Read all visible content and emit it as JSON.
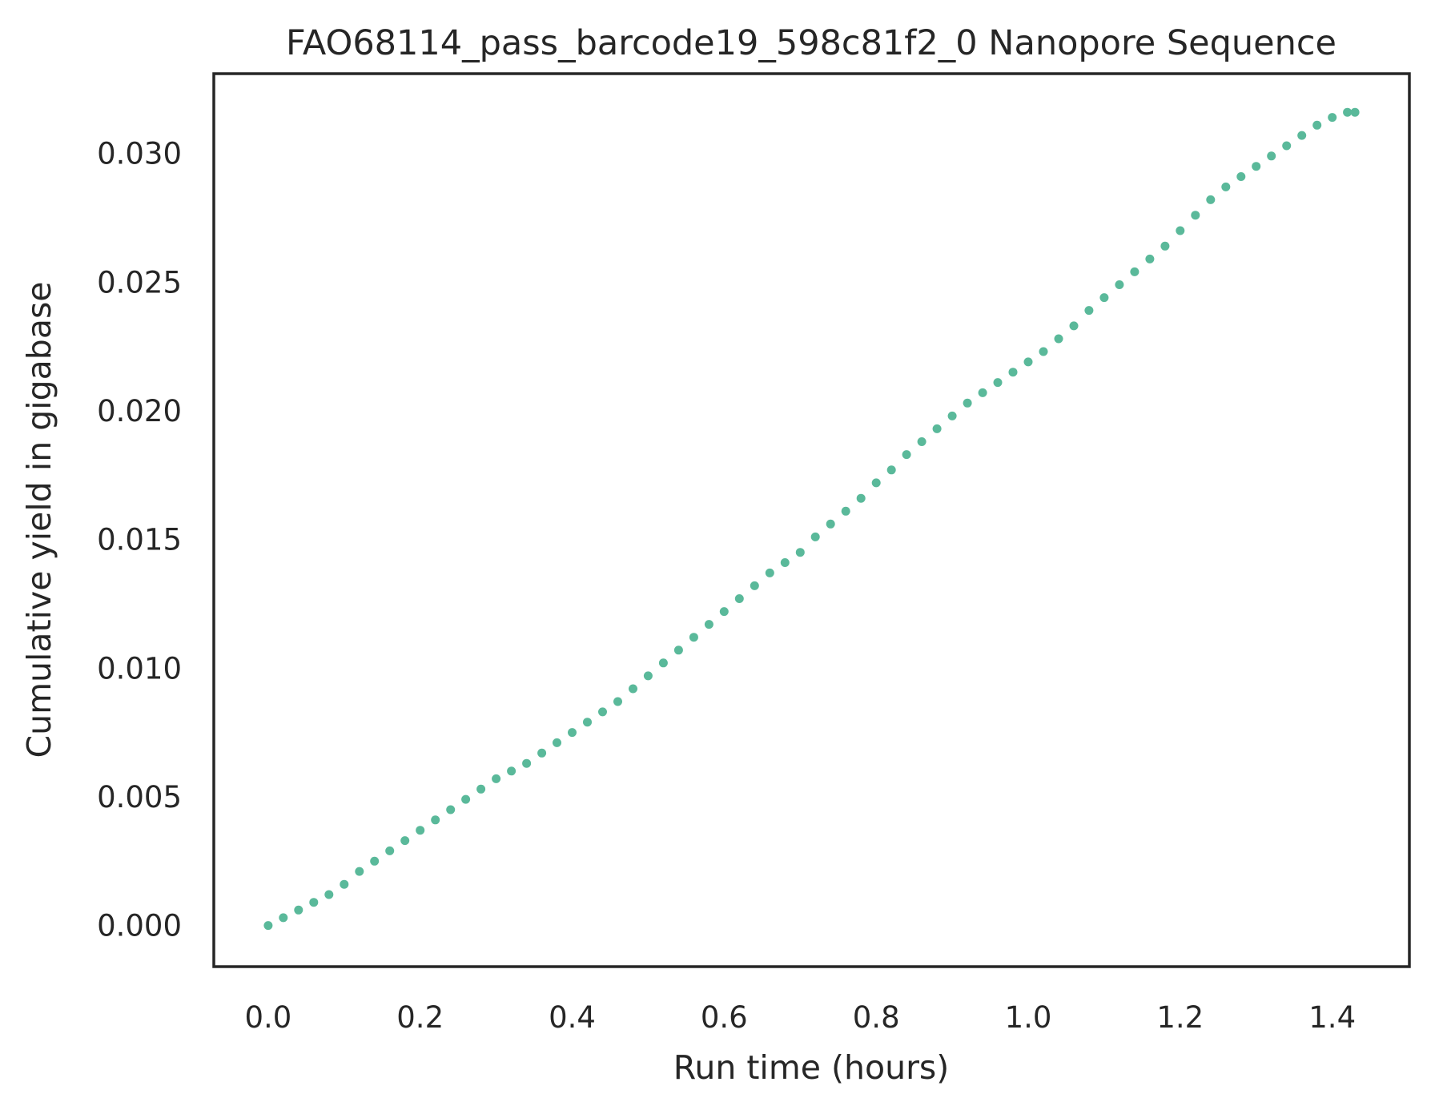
{
  "chart_data": {
    "type": "scatter",
    "title": "FAO68114_pass_barcode19_598c81f2_0 Nanopore Sequence",
    "xlabel": "Run time (hours)",
    "ylabel": "Cumulative yield in gigabase",
    "xlim": [
      -0.0715,
      1.5015
    ],
    "ylim": [
      -0.0016,
      0.0331
    ],
    "xticks": [
      0.0,
      0.2,
      0.4,
      0.6,
      0.8,
      1.0,
      1.2,
      1.4
    ],
    "xtick_labels": [
      "0.0",
      "0.2",
      "0.4",
      "0.6",
      "0.8",
      "1.0",
      "1.2",
      "1.4"
    ],
    "yticks": [
      0.0,
      0.005,
      0.01,
      0.015,
      0.02,
      0.025,
      0.03
    ],
    "ytick_labels": [
      "0.000",
      "0.005",
      "0.010",
      "0.015",
      "0.020",
      "0.025",
      "0.030"
    ],
    "grid": false,
    "point_color": "#5ab99a",
    "series": [
      {
        "x": [
          0.0,
          0.02,
          0.04,
          0.06,
          0.08,
          0.1,
          0.12,
          0.14,
          0.16,
          0.18,
          0.2,
          0.22,
          0.24,
          0.26,
          0.28,
          0.3,
          0.32,
          0.34,
          0.36,
          0.38,
          0.4,
          0.42,
          0.44,
          0.46,
          0.48,
          0.5,
          0.52,
          0.54,
          0.56,
          0.58,
          0.6,
          0.62,
          0.64,
          0.66,
          0.68,
          0.7,
          0.72,
          0.74,
          0.76,
          0.78,
          0.8,
          0.82,
          0.84,
          0.86,
          0.88,
          0.9,
          0.92,
          0.94,
          0.96,
          0.98,
          1.0,
          1.02,
          1.04,
          1.06,
          1.08,
          1.1,
          1.12,
          1.14,
          1.16,
          1.18,
          1.2,
          1.22,
          1.24,
          1.26,
          1.28,
          1.3,
          1.32,
          1.34,
          1.36,
          1.38,
          1.4,
          1.42,
          1.43
        ],
        "y": [
          0.0,
          0.0003,
          0.0006,
          0.0009,
          0.0012,
          0.0016,
          0.0021,
          0.0025,
          0.0029,
          0.0033,
          0.0037,
          0.0041,
          0.0045,
          0.0049,
          0.0053,
          0.0057,
          0.006,
          0.0063,
          0.0067,
          0.0071,
          0.0075,
          0.0079,
          0.0083,
          0.0087,
          0.0092,
          0.0097,
          0.0102,
          0.0107,
          0.0112,
          0.0117,
          0.0122,
          0.0127,
          0.0132,
          0.0137,
          0.0141,
          0.0145,
          0.0151,
          0.0156,
          0.0161,
          0.0166,
          0.0172,
          0.0177,
          0.0183,
          0.0188,
          0.0193,
          0.0198,
          0.0203,
          0.0207,
          0.0211,
          0.0215,
          0.0219,
          0.0223,
          0.0228,
          0.0233,
          0.0239,
          0.0244,
          0.0249,
          0.0254,
          0.0259,
          0.0264,
          0.027,
          0.0276,
          0.0282,
          0.0287,
          0.0291,
          0.0295,
          0.0299,
          0.0303,
          0.0307,
          0.0311,
          0.0314,
          0.0316,
          0.0316
        ]
      }
    ]
  }
}
